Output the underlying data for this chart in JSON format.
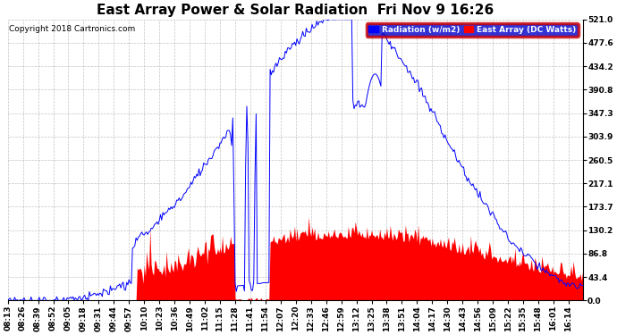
{
  "title": "East Array Power & Solar Radiation  Fri Nov 9 16:26",
  "copyright": "Copyright 2018 Cartronics.com",
  "legend_labels": [
    "Radiation (w/m2)",
    "East Array (DC Watts)"
  ],
  "legend_colors": [
    "blue",
    "red"
  ],
  "y_ticks": [
    0.0,
    43.4,
    86.8,
    130.2,
    173.7,
    217.1,
    260.5,
    303.9,
    347.3,
    390.8,
    434.2,
    477.6,
    521.0
  ],
  "y_max": 521.0,
  "y_min": 0.0,
  "background_color": "#ffffff",
  "grid_color": "#aaaaaa",
  "title_fontsize": 11,
  "copyright_fontsize": 6.5,
  "tick_label_fontsize": 6.5
}
